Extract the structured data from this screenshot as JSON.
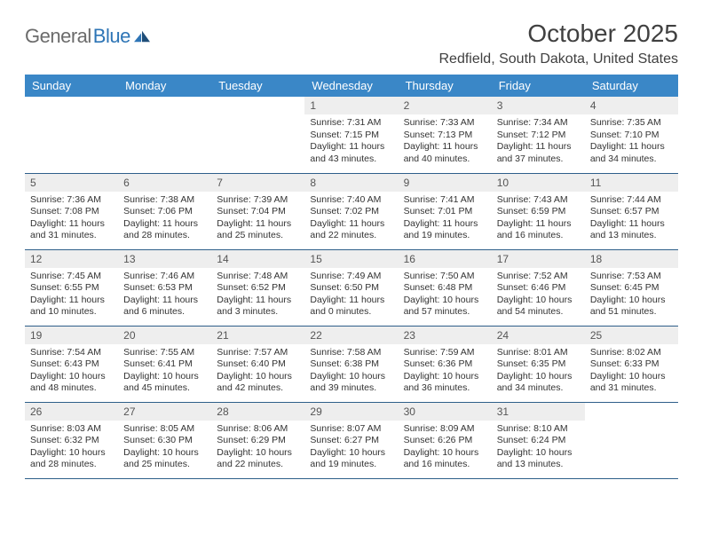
{
  "logo": {
    "text1": "General",
    "text2": "Blue"
  },
  "title": "October 2025",
  "location": "Redfield, South Dakota, United States",
  "dayHeaders": [
    "Sunday",
    "Monday",
    "Tuesday",
    "Wednesday",
    "Thursday",
    "Friday",
    "Saturday"
  ],
  "colors": {
    "headerBg": "#3a87c7",
    "headerText": "#ffffff",
    "dayNumBg": "#eeeeee",
    "rowBorder": "#2e5f8a",
    "bodyText": "#333333",
    "logoGray": "#6b6b6b",
    "logoBlue": "#2e75b6"
  },
  "weeks": [
    [
      null,
      null,
      null,
      {
        "n": "1",
        "sunrise": "7:31 AM",
        "sunset": "7:15 PM",
        "dl": "11 hours and 43 minutes."
      },
      {
        "n": "2",
        "sunrise": "7:33 AM",
        "sunset": "7:13 PM",
        "dl": "11 hours and 40 minutes."
      },
      {
        "n": "3",
        "sunrise": "7:34 AM",
        "sunset": "7:12 PM",
        "dl": "11 hours and 37 minutes."
      },
      {
        "n": "4",
        "sunrise": "7:35 AM",
        "sunset": "7:10 PM",
        "dl": "11 hours and 34 minutes."
      }
    ],
    [
      {
        "n": "5",
        "sunrise": "7:36 AM",
        "sunset": "7:08 PM",
        "dl": "11 hours and 31 minutes."
      },
      {
        "n": "6",
        "sunrise": "7:38 AM",
        "sunset": "7:06 PM",
        "dl": "11 hours and 28 minutes."
      },
      {
        "n": "7",
        "sunrise": "7:39 AM",
        "sunset": "7:04 PM",
        "dl": "11 hours and 25 minutes."
      },
      {
        "n": "8",
        "sunrise": "7:40 AM",
        "sunset": "7:02 PM",
        "dl": "11 hours and 22 minutes."
      },
      {
        "n": "9",
        "sunrise": "7:41 AM",
        "sunset": "7:01 PM",
        "dl": "11 hours and 19 minutes."
      },
      {
        "n": "10",
        "sunrise": "7:43 AM",
        "sunset": "6:59 PM",
        "dl": "11 hours and 16 minutes."
      },
      {
        "n": "11",
        "sunrise": "7:44 AM",
        "sunset": "6:57 PM",
        "dl": "11 hours and 13 minutes."
      }
    ],
    [
      {
        "n": "12",
        "sunrise": "7:45 AM",
        "sunset": "6:55 PM",
        "dl": "11 hours and 10 minutes."
      },
      {
        "n": "13",
        "sunrise": "7:46 AM",
        "sunset": "6:53 PM",
        "dl": "11 hours and 6 minutes."
      },
      {
        "n": "14",
        "sunrise": "7:48 AM",
        "sunset": "6:52 PM",
        "dl": "11 hours and 3 minutes."
      },
      {
        "n": "15",
        "sunrise": "7:49 AM",
        "sunset": "6:50 PM",
        "dl": "11 hours and 0 minutes."
      },
      {
        "n": "16",
        "sunrise": "7:50 AM",
        "sunset": "6:48 PM",
        "dl": "10 hours and 57 minutes."
      },
      {
        "n": "17",
        "sunrise": "7:52 AM",
        "sunset": "6:46 PM",
        "dl": "10 hours and 54 minutes."
      },
      {
        "n": "18",
        "sunrise": "7:53 AM",
        "sunset": "6:45 PM",
        "dl": "10 hours and 51 minutes."
      }
    ],
    [
      {
        "n": "19",
        "sunrise": "7:54 AM",
        "sunset": "6:43 PM",
        "dl": "10 hours and 48 minutes."
      },
      {
        "n": "20",
        "sunrise": "7:55 AM",
        "sunset": "6:41 PM",
        "dl": "10 hours and 45 minutes."
      },
      {
        "n": "21",
        "sunrise": "7:57 AM",
        "sunset": "6:40 PM",
        "dl": "10 hours and 42 minutes."
      },
      {
        "n": "22",
        "sunrise": "7:58 AM",
        "sunset": "6:38 PM",
        "dl": "10 hours and 39 minutes."
      },
      {
        "n": "23",
        "sunrise": "7:59 AM",
        "sunset": "6:36 PM",
        "dl": "10 hours and 36 minutes."
      },
      {
        "n": "24",
        "sunrise": "8:01 AM",
        "sunset": "6:35 PM",
        "dl": "10 hours and 34 minutes."
      },
      {
        "n": "25",
        "sunrise": "8:02 AM",
        "sunset": "6:33 PM",
        "dl": "10 hours and 31 minutes."
      }
    ],
    [
      {
        "n": "26",
        "sunrise": "8:03 AM",
        "sunset": "6:32 PM",
        "dl": "10 hours and 28 minutes."
      },
      {
        "n": "27",
        "sunrise": "8:05 AM",
        "sunset": "6:30 PM",
        "dl": "10 hours and 25 minutes."
      },
      {
        "n": "28",
        "sunrise": "8:06 AM",
        "sunset": "6:29 PM",
        "dl": "10 hours and 22 minutes."
      },
      {
        "n": "29",
        "sunrise": "8:07 AM",
        "sunset": "6:27 PM",
        "dl": "10 hours and 19 minutes."
      },
      {
        "n": "30",
        "sunrise": "8:09 AM",
        "sunset": "6:26 PM",
        "dl": "10 hours and 16 minutes."
      },
      {
        "n": "31",
        "sunrise": "8:10 AM",
        "sunset": "6:24 PM",
        "dl": "10 hours and 13 minutes."
      },
      null
    ]
  ],
  "labels": {
    "sunrise": "Sunrise: ",
    "sunset": "Sunset: ",
    "daylight": "Daylight: "
  }
}
